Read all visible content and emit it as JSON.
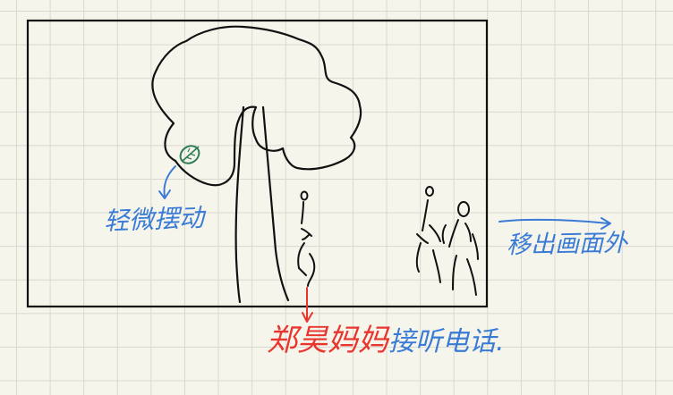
{
  "annotations": {
    "leaf_sway": "轻微摆动",
    "phone_red": "郑昊妈妈",
    "phone_blue": "接听电话.",
    "move_out": "移出画面外"
  },
  "colors": {
    "ink": "#111111",
    "blue_note": "#3a7bd5",
    "red_note": "#e8352e",
    "leaf": "#2f7d55",
    "paper": "#f6f5ec",
    "grid": "#d9d8cf"
  }
}
